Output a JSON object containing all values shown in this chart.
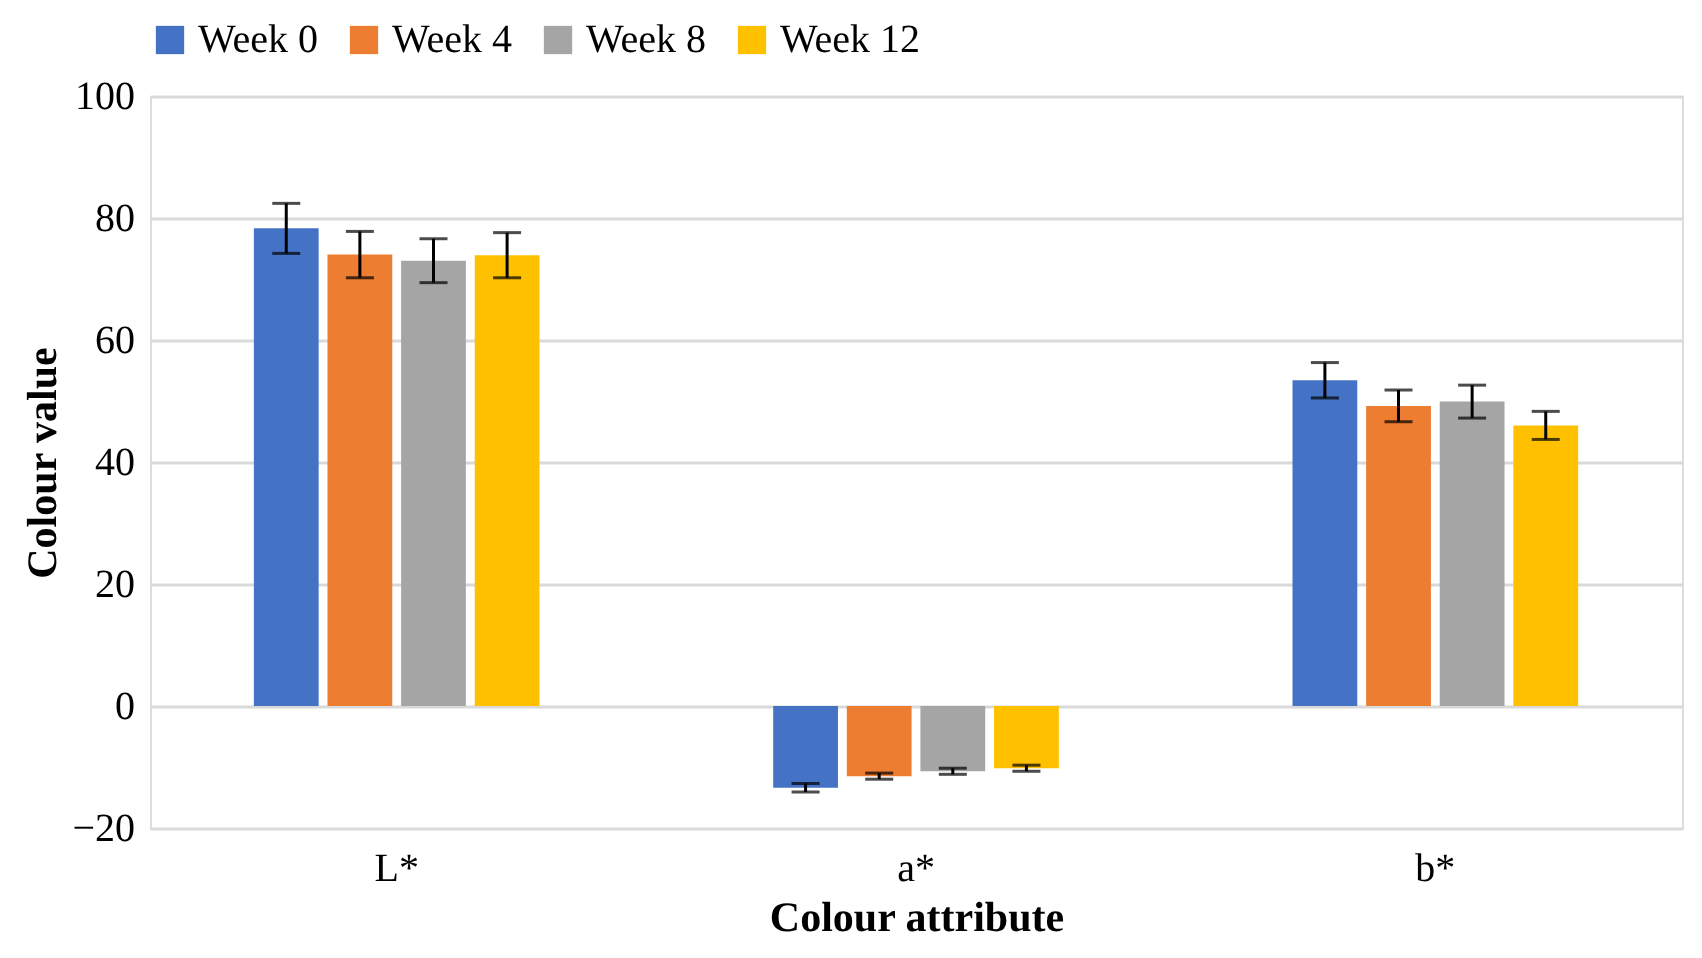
{
  "chart_data": {
    "type": "bar",
    "xlabel": "Colour attribute",
    "ylabel": "Colour value",
    "categories": [
      "L*",
      "a*",
      "b*"
    ],
    "series": [
      {
        "name": "Week 0",
        "color": "#4472c4",
        "values": [
          78.3,
          -13.4,
          53.4
        ],
        "errors": [
          4.1,
          0.7,
          2.9
        ]
      },
      {
        "name": "Week 4",
        "color": "#ed7d31",
        "values": [
          74.0,
          -11.5,
          49.2
        ],
        "errors": [
          3.8,
          0.5,
          2.6
        ]
      },
      {
        "name": "Week 8",
        "color": "#a5a5a5",
        "values": [
          73.0,
          -10.7,
          49.9
        ],
        "errors": [
          3.6,
          0.5,
          2.7
        ]
      },
      {
        "name": "Week 12",
        "color": "#ffc000",
        "values": [
          73.9,
          -10.2,
          46.0
        ],
        "errors": [
          3.7,
          0.5,
          2.3
        ]
      }
    ],
    "ylim": [
      -20,
      100
    ],
    "yticks": [
      -20,
      0,
      20,
      40,
      60,
      80,
      100
    ],
    "grid": "y",
    "legend": "top"
  }
}
